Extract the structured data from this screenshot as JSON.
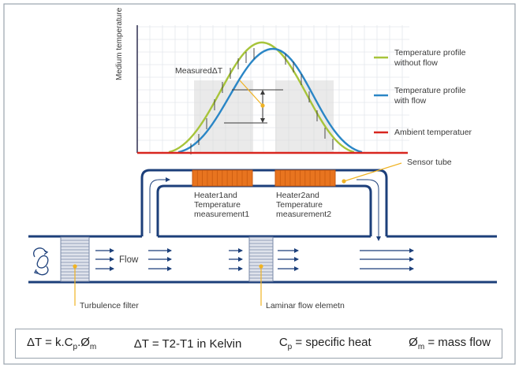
{
  "chart": {
    "ylabel": "Medium temperature",
    "measured_label": "MeasuredΔT"
  },
  "legend": [
    {
      "label_line1": "Temperature profile",
      "label_line2": "without flow",
      "color": "#a7c43a"
    },
    {
      "label_line1": "Temperature profile",
      "label_line2": "with flow",
      "color": "#2a86c6"
    },
    {
      "label_line1": "Ambient temperatuer",
      "label_line2": "",
      "color": "#d8261f"
    }
  ],
  "labels": {
    "sensor_tube": "Sensor tube",
    "heater1_l1": "Heater1and",
    "heater1_l2": "Temperature",
    "heater1_l3": "measurement1",
    "heater2_l1": "Heater2and",
    "heater2_l2": "Temperature",
    "heater2_l3": "measurement2",
    "flow": "Flow",
    "turbulence_filter": "Turbulence filter",
    "laminar_flow": "Laminar flow elemetn"
  },
  "colors": {
    "pipe": "#1c3f7a",
    "heater": "#e8741f",
    "leader": "#f0b323",
    "frame": "#9aa3ad"
  },
  "formula": {
    "f1_a": "ΔT = k.C",
    "f1_sub1": "p",
    "f1_b": ".Ø",
    "f1_sub2": "m",
    "f2": "ΔT = T2-T1 in Kelvin",
    "f3_a": "C",
    "f3_sub": "p",
    "f3_b": " = specific heat",
    "f4_a": "Ø",
    "f4_sub": "m",
    "f4_b": " = mass flow"
  }
}
